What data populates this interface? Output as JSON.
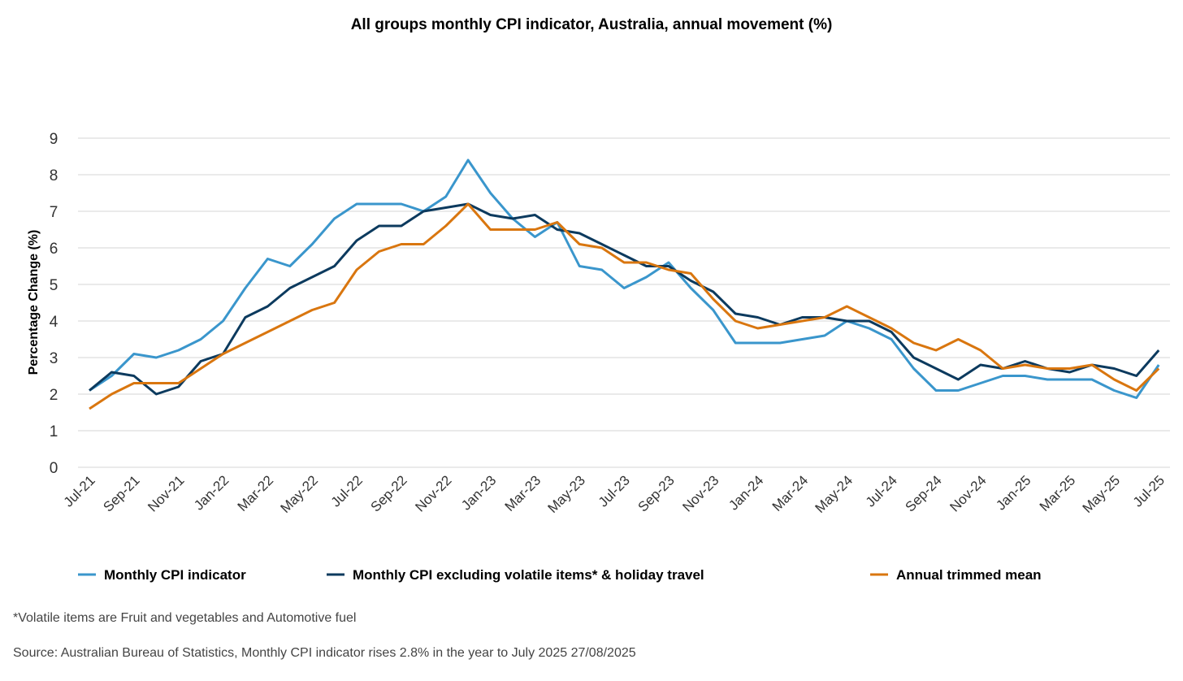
{
  "chart_data": {
    "type": "line",
    "title": "All groups monthly CPI indicator, Australia, annual movement (%)",
    "xlabel": "",
    "ylabel": "Percentage Change (%)",
    "ylim": [
      0,
      9
    ],
    "yticks": [
      "0",
      "1",
      "2",
      "3",
      "4",
      "5",
      "6",
      "7",
      "8",
      "9"
    ],
    "grid": true,
    "legend_position": "bottom",
    "x": [
      "Jul-21",
      "Aug-21",
      "Sep-21",
      "Oct-21",
      "Nov-21",
      "Dec-21",
      "Jan-22",
      "Feb-22",
      "Mar-22",
      "Apr-22",
      "May-22",
      "Jun-22",
      "Jul-22",
      "Aug-22",
      "Sep-22",
      "Oct-22",
      "Nov-22",
      "Dec-22",
      "Jan-23",
      "Feb-23",
      "Mar-23",
      "Apr-23",
      "May-23",
      "Jun-23",
      "Jul-23",
      "Aug-23",
      "Sep-23",
      "Oct-23",
      "Nov-23",
      "Dec-23",
      "Jan-24",
      "Feb-24",
      "Mar-24",
      "Apr-24",
      "May-24",
      "Jun-24",
      "Jul-24",
      "Aug-24",
      "Sep-24",
      "Oct-24",
      "Nov-24",
      "Dec-24",
      "Jan-25",
      "Feb-25",
      "Mar-25",
      "Apr-25",
      "May-25",
      "Jun-25",
      "Jul-25"
    ],
    "xticks": [
      "Jul-21",
      "Sep-21",
      "Nov-21",
      "Jan-22",
      "Mar-22",
      "May-22",
      "Jul-22",
      "Sep-22",
      "Nov-22",
      "Jan-23",
      "Mar-23",
      "May-23",
      "Jul-23",
      "Sep-23",
      "Nov-23",
      "Jan-24",
      "Mar-24",
      "May-24",
      "Jul-24",
      "Sep-24",
      "Nov-24",
      "Jan-25",
      "Mar-25",
      "May-25",
      "Jul-25"
    ],
    "series": [
      {
        "name": "Monthly CPI indicator",
        "color": "#3a96cc",
        "values": [
          2.1,
          2.5,
          3.1,
          3.0,
          3.2,
          3.5,
          4.0,
          4.9,
          5.7,
          5.5,
          6.1,
          6.8,
          7.2,
          7.2,
          7.2,
          7.0,
          7.4,
          8.4,
          7.5,
          6.8,
          6.3,
          6.7,
          5.5,
          5.4,
          4.9,
          5.2,
          5.6,
          4.9,
          4.3,
          3.4,
          3.4,
          3.4,
          3.5,
          3.6,
          4.0,
          3.8,
          3.5,
          2.7,
          2.1,
          2.1,
          2.3,
          2.5,
          2.5,
          2.4,
          2.4,
          2.4,
          2.1,
          1.9,
          2.8
        ]
      },
      {
        "name": "Monthly CPI excluding volatile items* & holiday travel",
        "color": "#0c3a5e",
        "values": [
          2.1,
          2.6,
          2.5,
          2.0,
          2.2,
          2.9,
          3.1,
          4.1,
          4.4,
          4.9,
          5.2,
          5.5,
          6.2,
          6.6,
          6.6,
          7.0,
          7.1,
          7.2,
          6.9,
          6.8,
          6.9,
          6.5,
          6.4,
          6.1,
          5.8,
          5.5,
          5.5,
          5.1,
          4.8,
          4.2,
          4.1,
          3.9,
          4.1,
          4.1,
          4.0,
          4.0,
          3.7,
          3.0,
          2.7,
          2.4,
          2.8,
          2.7,
          2.9,
          2.7,
          2.6,
          2.8,
          2.7,
          2.5,
          3.2
        ]
      },
      {
        "name": "Annual trimmed mean",
        "color": "#d9760f",
        "values": [
          1.6,
          2.0,
          2.3,
          2.3,
          2.3,
          2.7,
          3.1,
          3.4,
          3.7,
          4.0,
          4.3,
          4.5,
          5.4,
          5.9,
          6.1,
          6.1,
          6.6,
          7.2,
          6.5,
          6.5,
          6.5,
          6.7,
          6.1,
          6.0,
          5.6,
          5.6,
          5.4,
          5.3,
          4.6,
          4.0,
          3.8,
          3.9,
          4.0,
          4.1,
          4.4,
          4.1,
          3.8,
          3.4,
          3.2,
          3.5,
          3.2,
          2.7,
          2.8,
          2.7,
          2.7,
          2.8,
          2.4,
          2.1,
          2.7
        ]
      }
    ]
  },
  "footnote": "*Volatile items are Fruit and vegetables and Automotive fuel",
  "source": "Source: Australian Bureau of Statistics, Monthly CPI indicator rises 2.8% in the year to July 2025 27/08/2025"
}
